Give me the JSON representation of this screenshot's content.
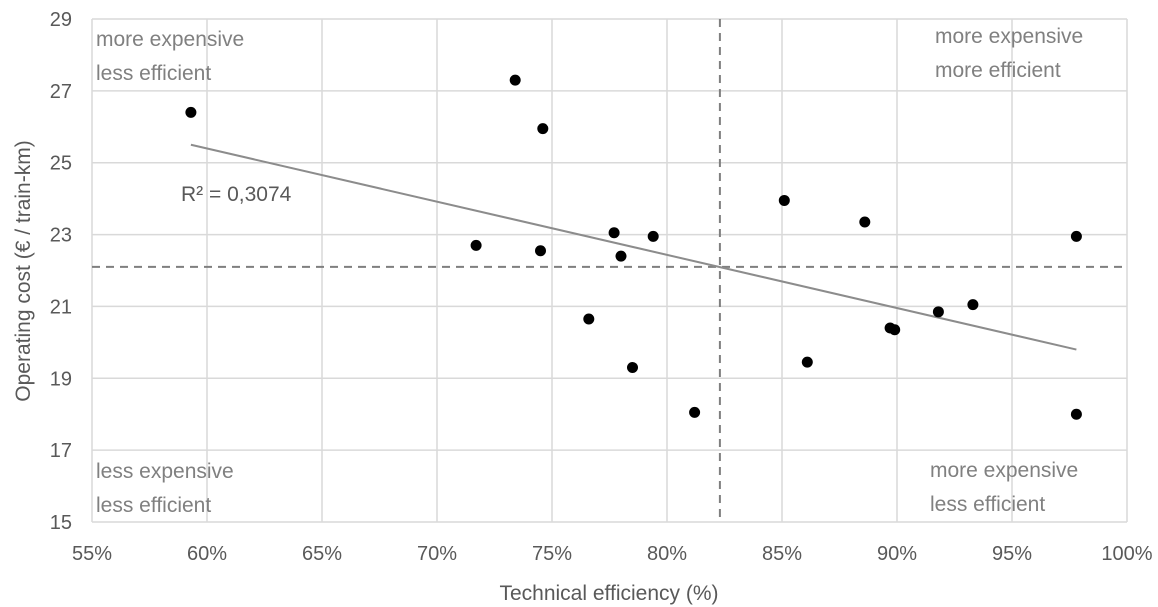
{
  "chart_data": {
    "type": "scatter",
    "xlabel": "Technical efficiency (%)",
    "ylabel": "Operating cost (€ / train-km)",
    "xlim": [
      55,
      100
    ],
    "ylim": [
      15,
      29
    ],
    "xticks": [
      55,
      60,
      65,
      70,
      75,
      80,
      85,
      90,
      95,
      100
    ],
    "xtick_labels": [
      "55%",
      "60%",
      "65%",
      "70%",
      "75%",
      "80%",
      "85%",
      "90%",
      "95%",
      "100%"
    ],
    "yticks": [
      15,
      17,
      19,
      21,
      23,
      25,
      27,
      29
    ],
    "ytick_labels": [
      "15",
      "17",
      "19",
      "21",
      "23",
      "25",
      "27",
      "29"
    ],
    "grid": true,
    "points": [
      {
        "x": 59.3,
        "y": 26.4
      },
      {
        "x": 71.7,
        "y": 22.7
      },
      {
        "x": 73.4,
        "y": 27.3
      },
      {
        "x": 74.5,
        "y": 22.55
      },
      {
        "x": 74.6,
        "y": 25.95
      },
      {
        "x": 76.6,
        "y": 20.65
      },
      {
        "x": 77.7,
        "y": 23.05
      },
      {
        "x": 78.0,
        "y": 22.4
      },
      {
        "x": 78.5,
        "y": 19.3
      },
      {
        "x": 79.4,
        "y": 22.95
      },
      {
        "x": 81.2,
        "y": 18.05
      },
      {
        "x": 85.1,
        "y": 23.95
      },
      {
        "x": 86.1,
        "y": 19.45
      },
      {
        "x": 88.6,
        "y": 23.35
      },
      {
        "x": 89.7,
        "y": 20.4
      },
      {
        "x": 89.9,
        "y": 20.35
      },
      {
        "x": 91.8,
        "y": 20.85
      },
      {
        "x": 93.3,
        "y": 21.05
      },
      {
        "x": 97.8,
        "y": 22.95
      },
      {
        "x": 97.8,
        "y": 18.0
      }
    ],
    "trendline": {
      "x": [
        59.3,
        97.8
      ],
      "y": [
        25.5,
        19.8
      ],
      "color": "#8c8c8c"
    },
    "reference_lines": {
      "x": 82.3,
      "y": 22.1,
      "style": "dashed",
      "color": "#7f7f7f"
    },
    "annotations": {
      "r_squared": "R² = 0,3074",
      "top_left": [
        "more expensive",
        "less efficient"
      ],
      "top_right": [
        "more expensive",
        "more efficient"
      ],
      "bottom_left": [
        "less expensive",
        "less efficient"
      ],
      "bottom_right": [
        "more expensive",
        "less efficient"
      ]
    },
    "colors": {
      "points": "#000000",
      "grid": "#d9d9d9",
      "text": "#595959",
      "quadrant_text": "#808080"
    }
  }
}
